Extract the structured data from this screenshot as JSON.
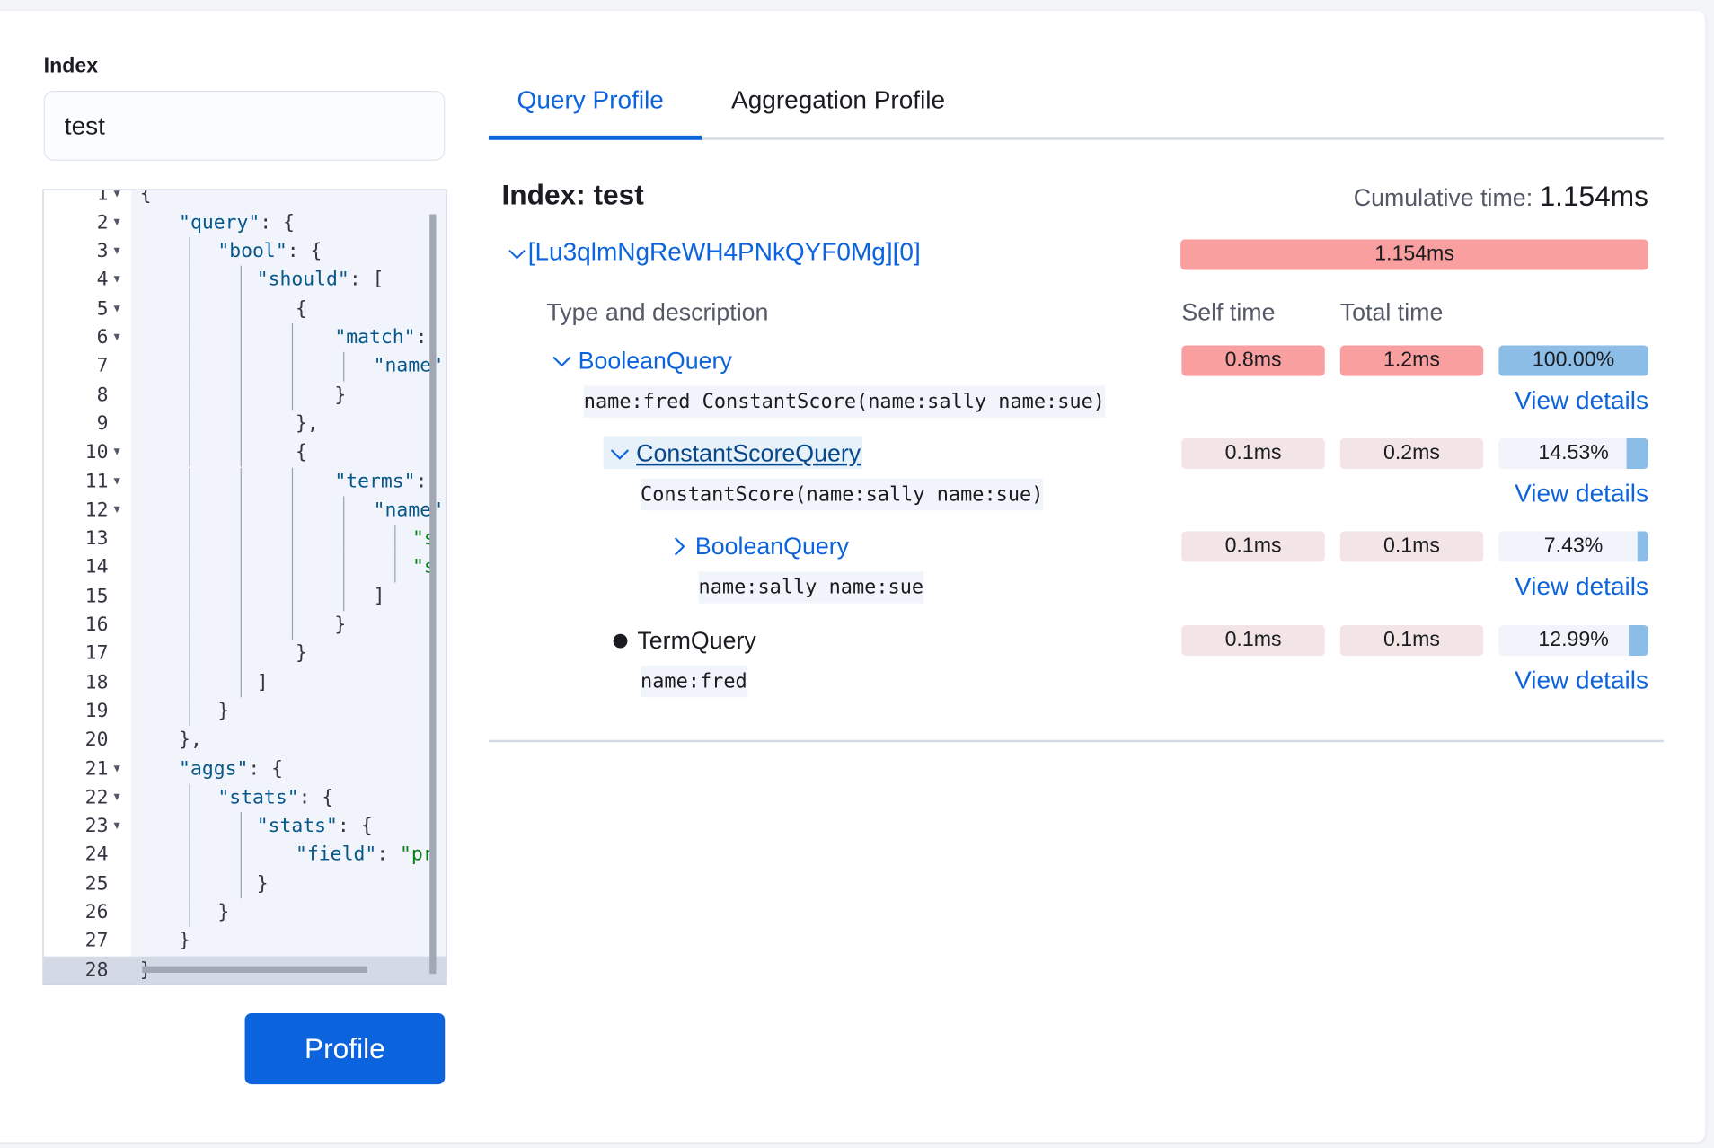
{
  "index_label": "Index",
  "index_value": "test",
  "editor": {
    "active_line": 28,
    "lines": [
      {
        "n": 1,
        "lvl": 0,
        "fold": true,
        "text": "{"
      },
      {
        "n": 2,
        "lvl": 1,
        "fold": true,
        "text": "\"query\": {"
      },
      {
        "n": 3,
        "lvl": 2,
        "fold": true,
        "text": "\"bool\": {"
      },
      {
        "n": 4,
        "lvl": 3,
        "fold": true,
        "text": "\"should\": ["
      },
      {
        "n": 5,
        "lvl": 4,
        "fold": true,
        "text": "{"
      },
      {
        "n": 6,
        "lvl": 5,
        "fold": true,
        "text": "\"match\":"
      },
      {
        "n": 7,
        "lvl": 6,
        "fold": false,
        "text": "\"name\""
      },
      {
        "n": 8,
        "lvl": 5,
        "fold": false,
        "text": "}"
      },
      {
        "n": 9,
        "lvl": 4,
        "fold": false,
        "text": "},"
      },
      {
        "n": 10,
        "lvl": 4,
        "fold": true,
        "text": "{"
      },
      {
        "n": 11,
        "lvl": 5,
        "fold": true,
        "text": "\"terms\":"
      },
      {
        "n": 12,
        "lvl": 6,
        "fold": true,
        "text": "\"name\""
      },
      {
        "n": 13,
        "lvl": 7,
        "fold": false,
        "text": "\"s"
      },
      {
        "n": 14,
        "lvl": 7,
        "fold": false,
        "text": "\"s"
      },
      {
        "n": 15,
        "lvl": 6,
        "fold": false,
        "text": "]"
      },
      {
        "n": 16,
        "lvl": 5,
        "fold": false,
        "text": "}"
      },
      {
        "n": 17,
        "lvl": 4,
        "fold": false,
        "text": "}"
      },
      {
        "n": 18,
        "lvl": 3,
        "fold": false,
        "text": "]"
      },
      {
        "n": 19,
        "lvl": 2,
        "fold": false,
        "text": "}"
      },
      {
        "n": 20,
        "lvl": 1,
        "fold": false,
        "text": "},"
      },
      {
        "n": 21,
        "lvl": 1,
        "fold": true,
        "text": "\"aggs\": {"
      },
      {
        "n": 22,
        "lvl": 2,
        "fold": true,
        "text": "\"stats\": {"
      },
      {
        "n": 23,
        "lvl": 3,
        "fold": true,
        "text": "\"stats\": {"
      },
      {
        "n": 24,
        "lvl": 4,
        "fold": false,
        "text": "\"field\": \"pr"
      },
      {
        "n": 25,
        "lvl": 3,
        "fold": false,
        "text": "}"
      },
      {
        "n": 26,
        "lvl": 2,
        "fold": false,
        "text": "}"
      },
      {
        "n": 27,
        "lvl": 1,
        "fold": false,
        "text": "}"
      },
      {
        "n": 28,
        "lvl": 0,
        "fold": false,
        "text": "}"
      }
    ]
  },
  "profile_button": "Profile",
  "tabs": [
    {
      "label": "Query Profile",
      "active": true
    },
    {
      "label": "Aggregation Profile",
      "active": false
    }
  ],
  "result": {
    "index_title": "Index: test",
    "cumulative_label": "Cumulative time: ",
    "cumulative_value": "1.154ms",
    "shard_label": "[Lu3qlmNgReWH4PNkQYF0Mg][0]",
    "shard_time": "1.154ms",
    "headers": {
      "type": "Type and description",
      "self": "Self time",
      "total": "Total time"
    },
    "view_details": "View details",
    "rows": [
      {
        "name": "BooleanQuery",
        "expander": "chevron-down",
        "link_style": "blue",
        "description": "name:fred ConstantScore(name:sally name:sue)",
        "self": "0.8ms",
        "total": "1.2ms",
        "pct_label": "100.00%",
        "pct": 100,
        "heat_color": "#f99f9f"
      },
      {
        "name": "ConstantScoreQuery",
        "expander": "chevron-down",
        "link_style": "selected",
        "description": "ConstantScore(name:sally name:sue)",
        "self": "0.1ms",
        "total": "0.2ms",
        "pct_label": "14.53%",
        "pct": 14.53,
        "heat_color": "#f3e5e5"
      },
      {
        "name": "BooleanQuery",
        "expander": "chevron-right",
        "link_style": "blue",
        "description": "name:sally name:sue",
        "self": "0.1ms",
        "total": "0.1ms",
        "pct_label": "7.43%",
        "pct": 7.43,
        "heat_color": "#f3e5e5"
      },
      {
        "name": "TermQuery",
        "expander": "bullet",
        "link_style": "plain",
        "description": "name:fred",
        "self": "0.1ms",
        "total": "0.1ms",
        "pct_label": "12.99%",
        "pct": 12.99,
        "heat_color": "#f3e5e5"
      }
    ]
  }
}
